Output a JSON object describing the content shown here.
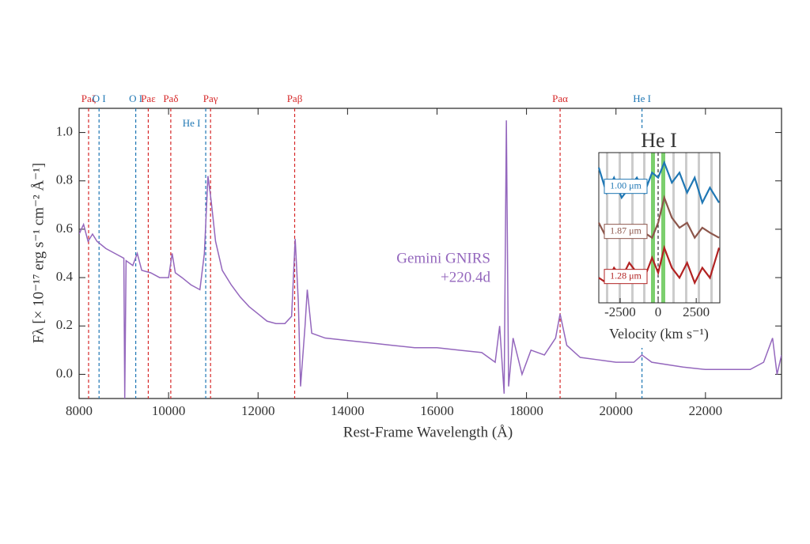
{
  "chart_data": [
    {
      "type": "line",
      "title": null,
      "xlabel": "Rest-Frame Wavelength (Å)",
      "ylabel": "Fλ [× 10⁻¹⁷ erg s⁻¹ cm⁻² Å⁻¹]",
      "annotation": [
        "Gemini GNIRS",
        "+220.4d"
      ],
      "color": "#9467bd",
      "xlim": [
        8000,
        23700
      ],
      "ylim": [
        -0.1,
        1.1
      ],
      "xticks": [
        8000,
        10000,
        12000,
        14000,
        16000,
        18000,
        20000,
        22000
      ],
      "yticks": [
        {
          "value": 0,
          "label": "0.0"
        },
        0.2,
        0.4,
        0.6,
        0.8,
        {
          "value": 1,
          "label": "1.0"
        }
      ],
      "x": [
        8000,
        8100,
        8200,
        8300,
        8400,
        8600,
        8800,
        9000,
        9020,
        9050,
        9200,
        9300,
        9400,
        9600,
        9800,
        10000,
        10080,
        10150,
        10300,
        10500,
        10700,
        10800,
        10880,
        10950,
        11050,
        11200,
        11400,
        11600,
        11800,
        12000,
        12200,
        12400,
        12600,
        12750,
        12830,
        12900,
        12950,
        13050,
        13100,
        13200,
        13500,
        14000,
        14500,
        15000,
        15500,
        16000,
        16500,
        17000,
        17300,
        17400,
        17500,
        17550,
        17600,
        17700,
        17900,
        18100,
        18400,
        18650,
        18750,
        18900,
        19200,
        19600,
        20000,
        20400,
        20580,
        20800,
        21500,
        22000,
        22500,
        23000,
        23300,
        23500,
        23600,
        23700
      ],
      "values": [
        0.58,
        0.62,
        0.55,
        0.58,
        0.55,
        0.52,
        0.5,
        0.48,
        -0.1,
        0.47,
        0.45,
        0.5,
        0.43,
        0.42,
        0.4,
        0.4,
        0.5,
        0.42,
        0.4,
        0.37,
        0.35,
        0.5,
        0.82,
        0.72,
        0.55,
        0.43,
        0.37,
        0.32,
        0.28,
        0.25,
        0.22,
        0.21,
        0.21,
        0.24,
        0.56,
        0.3,
        -0.05,
        0.2,
        0.35,
        0.17,
        0.15,
        0.14,
        0.13,
        0.12,
        0.11,
        0.11,
        0.1,
        0.09,
        0.05,
        0.2,
        -0.08,
        1.05,
        -0.05,
        0.15,
        0,
        0.1,
        0.08,
        0.15,
        0.25,
        0.12,
        0.07,
        0.06,
        0.05,
        0.05,
        0.08,
        0.05,
        0.03,
        0.02,
        0.02,
        0.02,
        0.05,
        0.15,
        0,
        0.08
      ],
      "lines": [
        {
          "label": "Paζ",
          "x": 8212,
          "color": "#d62728"
        },
        {
          "label": "O I",
          "x": 8446,
          "color": "#1f77b4"
        },
        {
          "label": "O I",
          "x": 9266,
          "color": "#1f77b4"
        },
        {
          "label": "Paε",
          "x": 9546,
          "color": "#d62728"
        },
        {
          "label": "Paδ",
          "x": 10049,
          "color": "#d62728"
        },
        {
          "label": "He I",
          "x": 10830,
          "color": "#1f77b4"
        },
        {
          "label": "Paγ",
          "x": 10938,
          "color": "#d62728"
        },
        {
          "label": "Paβ",
          "x": 12818,
          "color": "#d62728"
        },
        {
          "label": "Paα",
          "x": 18751,
          "color": "#d62728"
        },
        {
          "label": "He I",
          "x": 20581,
          "color": "#1f77b4"
        }
      ]
    },
    {
      "type": "line",
      "title": "He I",
      "xlabel": "Velocity (km s⁻¹)",
      "xlim": [
        -3900,
        4050
      ],
      "ylim": [
        0,
        3
      ],
      "xticks": [
        -2500,
        0,
        2500
      ],
      "x": [
        -3900,
        -3400,
        -2900,
        -2400,
        -1900,
        -1400,
        -900,
        -400,
        0,
        400,
        900,
        1400,
        1900,
        2400,
        2900,
        3400,
        4000
      ],
      "series": [
        {
          "name": "1.00 μm",
          "color": "#1f77b4",
          "values": [
            2.7,
            2.2,
            2.5,
            2.1,
            2.3,
            2.5,
            2.2,
            2.6,
            2.5,
            2.8,
            2.4,
            2.6,
            2.2,
            2.5,
            2.0,
            2.3,
            2.0
          ]
        },
        {
          "name": "1.87 μm",
          "color": "#8c564b",
          "values": [
            1.6,
            1.3,
            1.5,
            1.4,
            1.3,
            1.5,
            1.4,
            1.3,
            1.6,
            2.1,
            1.7,
            1.5,
            1.6,
            1.3,
            1.5,
            1.4,
            1.3
          ]
        },
        {
          "name": "1.28 μm",
          "color": "#b22222",
          "values": [
            0.5,
            0.4,
            0.7,
            0.5,
            0.8,
            0.6,
            0.5,
            0.9,
            0.6,
            1.1,
            0.7,
            0.5,
            0.8,
            0.4,
            0.7,
            0.5,
            1.1
          ]
        }
      ]
    }
  ]
}
